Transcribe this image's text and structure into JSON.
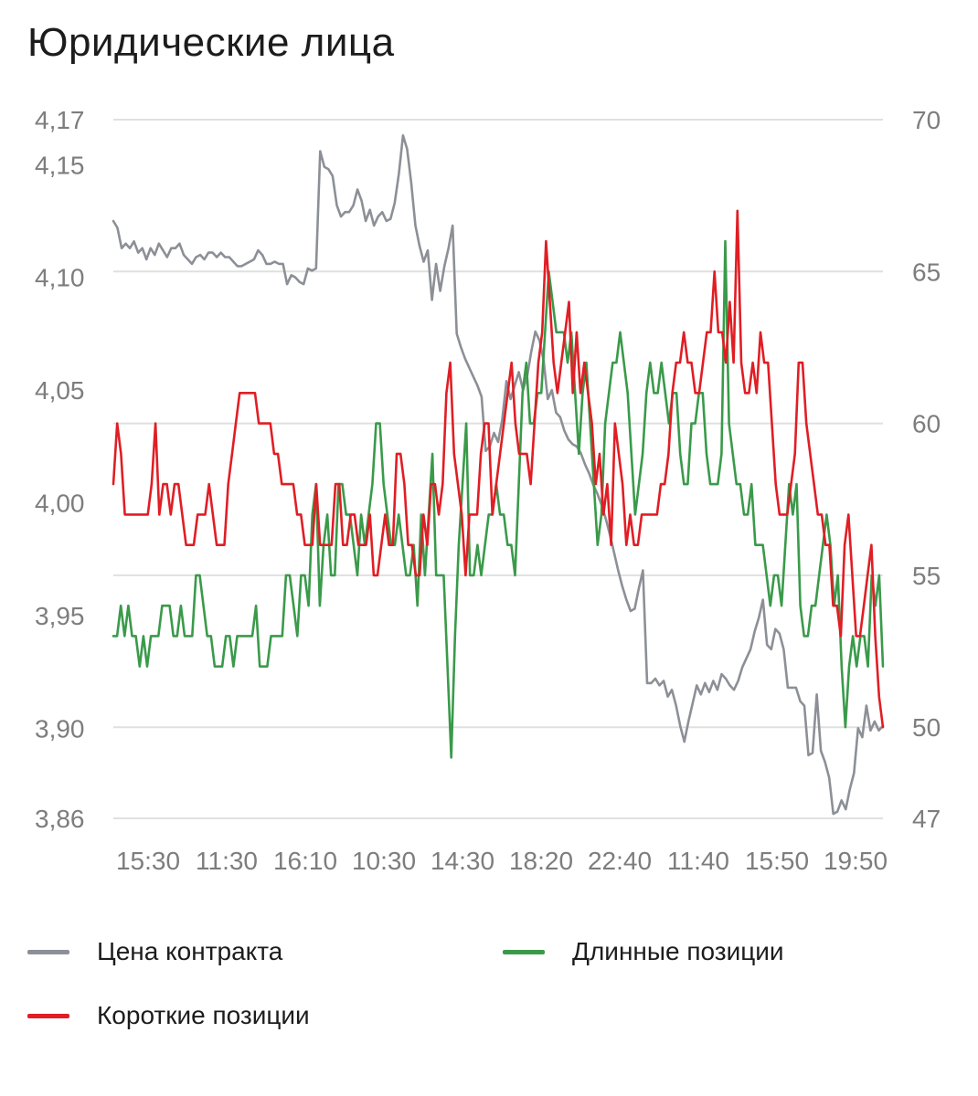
{
  "title": "Юридические лица",
  "colors": {
    "price": "#8c9096",
    "long": "#3a9a4a",
    "short": "#e01e24",
    "grid": "#e0e0e0",
    "tick": "#7d7d7d"
  },
  "legend": {
    "price": "Цена контракта",
    "long": "Длинные позиции",
    "short": "Короткие позиции"
  },
  "chart_data": {
    "type": "line",
    "title": "Юридические лица",
    "x_tick_labels": [
      "15:30",
      "11:30",
      "16:10",
      "10:30",
      "14:30",
      "18:20",
      "22:40",
      "11:40",
      "15:50",
      "19:50"
    ],
    "y_left": {
      "range": [
        3.86,
        4.17
      ],
      "ticks": [
        "4,17",
        "4,15",
        "4,10",
        "4,05",
        "4,00",
        "3,95",
        "3,90",
        "3,86"
      ],
      "tick_values": [
        4.17,
        4.15,
        4.1,
        4.05,
        4.0,
        3.95,
        3.9,
        3.86
      ]
    },
    "y_right": {
      "range": [
        47,
        70
      ],
      "ticks": [
        "70",
        "65",
        "60",
        "55",
        "50",
        "47"
      ],
      "tick_values": [
        70,
        65,
        60,
        55,
        50,
        47
      ]
    },
    "grid": true,
    "legend_position": "bottom",
    "series": [
      {
        "name": "Цена контракта",
        "axis": "left",
        "color_key": "price",
        "values": [
          4.125,
          4.122,
          4.113,
          4.115,
          4.113,
          4.116,
          4.111,
          4.113,
          4.108,
          4.113,
          4.11,
          4.115,
          4.112,
          4.109,
          4.113,
          4.113,
          4.115,
          4.11,
          4.108,
          4.106,
          4.109,
          4.11,
          4.108,
          4.111,
          4.111,
          4.109,
          4.111,
          4.109,
          4.109,
          4.107,
          4.105,
          4.105,
          4.106,
          4.107,
          4.108,
          4.112,
          4.11,
          4.106,
          4.106,
          4.107,
          4.106,
          4.106,
          4.097,
          4.101,
          4.1,
          4.098,
          4.097,
          4.104,
          4.103,
          4.104,
          4.156,
          4.149,
          4.148,
          4.145,
          4.132,
          4.127,
          4.129,
          4.129,
          4.132,
          4.139,
          4.134,
          4.125,
          4.13,
          4.123,
          4.127,
          4.129,
          4.125,
          4.126,
          4.133,
          4.146,
          4.163,
          4.157,
          4.142,
          4.123,
          4.114,
          4.107,
          4.112,
          4.09,
          4.106,
          4.094,
          4.105,
          4.113,
          4.123,
          4.075,
          4.069,
          4.064,
          4.06,
          4.056,
          4.052,
          4.047,
          4.023,
          4.025,
          4.031,
          4.027,
          4.037,
          4.054,
          4.046,
          4.052,
          4.058,
          4.05,
          4.056,
          4.067,
          4.076,
          4.072,
          4.063,
          4.046,
          4.05,
          4.04,
          4.038,
          4.032,
          4.028,
          4.026,
          4.025,
          4.022,
          4.017,
          4.013,
          4.008,
          4.004,
          3.999,
          3.993,
          3.986,
          3.978,
          3.97,
          3.963,
          3.957,
          3.952,
          3.953,
          3.962,
          3.97,
          3.92,
          3.92,
          3.922,
          3.919,
          3.921,
          3.914,
          3.917,
          3.91,
          3.901,
          3.894,
          3.903,
          3.911,
          3.919,
          3.915,
          3.92,
          3.916,
          3.921,
          3.917,
          3.924,
          3.922,
          3.919,
          3.917,
          3.921,
          3.927,
          3.931,
          3.935,
          3.943,
          3.949,
          3.957,
          3.937,
          3.935,
          3.944,
          3.942,
          3.935,
          3.918,
          3.918,
          3.918,
          3.912,
          3.91,
          3.888,
          3.889,
          3.915,
          3.89,
          3.885,
          3.878,
          3.862,
          3.863,
          3.868,
          3.864,
          3.873,
          3.88,
          3.9,
          3.896,
          3.91,
          3.899,
          3.903,
          3.899,
          3.901
        ]
      },
      {
        "name": "Длинные позиции",
        "axis": "right",
        "color_key": "long",
        "values": [
          53,
          53,
          54,
          53,
          54,
          53,
          53,
          52,
          53,
          52,
          53,
          53,
          53,
          54,
          54,
          54,
          53,
          53,
          54,
          53,
          53,
          53,
          55,
          55,
          54,
          53,
          53,
          52,
          52,
          52,
          53,
          53,
          52,
          53,
          53,
          53,
          53,
          53,
          54,
          52,
          52,
          52,
          53,
          53,
          53,
          53,
          55,
          55,
          54,
          53,
          55,
          55,
          54,
          57,
          58,
          54,
          56,
          57,
          55,
          55,
          58,
          58,
          57,
          57,
          56,
          55,
          57,
          56,
          57,
          58,
          60,
          60,
          58,
          57,
          56,
          56,
          57,
          56,
          55,
          55,
          56,
          54,
          57,
          55,
          57,
          59,
          55,
          55,
          55,
          52,
          49,
          53,
          56,
          58,
          60,
          55,
          55,
          56,
          55,
          56,
          57,
          57,
          58,
          57,
          57,
          56,
          56,
          55,
          58,
          61,
          62,
          60,
          60,
          61,
          61,
          63,
          65,
          64,
          63,
          63,
          63,
          62,
          63,
          61,
          59,
          61,
          62,
          60,
          58,
          56,
          57,
          60,
          61,
          62,
          62,
          63,
          62,
          61,
          59,
          57,
          58,
          59,
          61,
          62,
          61,
          61,
          62,
          61,
          60,
          61,
          61,
          59,
          58,
          58,
          60,
          60,
          61,
          61,
          59,
          58,
          58,
          58,
          59,
          66,
          60,
          59,
          58,
          58,
          57,
          57,
          58,
          56,
          56,
          56,
          55,
          54,
          55,
          55,
          54,
          56,
          58,
          57,
          58,
          54,
          53,
          53,
          54,
          54,
          55,
          56,
          57,
          56,
          54,
          55,
          52,
          50,
          52,
          53,
          52,
          53,
          53,
          52,
          55,
          54,
          55,
          52
        ]
      },
      {
        "name": "Короткие позиции",
        "axis": "right",
        "color_key": "short",
        "values": [
          58,
          60,
          59,
          57,
          57,
          57,
          57,
          57,
          57,
          57,
          58,
          60,
          57,
          58,
          58,
          57,
          58,
          58,
          57,
          56,
          56,
          56,
          57,
          57,
          57,
          58,
          57,
          56,
          56,
          56,
          58,
          59,
          60,
          61,
          61,
          61,
          61,
          61,
          60,
          60,
          60,
          60,
          59,
          59,
          58,
          58,
          58,
          58,
          57,
          57,
          56,
          56,
          56,
          58,
          56,
          56,
          56,
          56,
          58,
          58,
          56,
          56,
          57,
          57,
          56,
          56,
          56,
          57,
          55,
          55,
          56,
          57,
          56,
          56,
          59,
          59,
          58,
          56,
          56,
          55,
          55,
          57,
          56,
          58,
          58,
          57,
          58,
          61,
          62,
          59,
          58,
          57,
          55,
          57,
          57,
          57,
          59,
          60,
          60,
          57,
          58,
          59,
          60,
          61,
          62,
          60,
          59,
          59,
          59,
          58,
          60,
          62,
          63,
          66,
          64,
          62,
          61,
          62,
          63,
          64,
          61,
          63,
          61,
          62,
          61,
          60,
          58,
          59,
          57,
          58,
          56,
          60,
          59,
          58,
          56,
          57,
          56,
          56,
          57,
          57,
          57,
          57,
          57,
          58,
          58,
          59,
          61,
          62,
          62,
          63,
          62,
          62,
          61,
          61,
          62,
          63,
          63,
          65,
          63,
          63,
          62,
          64,
          62,
          67,
          62,
          61,
          61,
          62,
          61,
          63,
          62,
          62,
          60,
          58,
          57,
          57,
          57,
          58,
          59,
          62,
          62,
          60,
          59,
          58,
          57,
          57,
          56,
          56,
          54,
          54,
          53,
          56,
          57,
          55,
          53,
          53,
          54,
          55,
          56,
          53,
          51,
          50
        ]
      }
    ]
  }
}
